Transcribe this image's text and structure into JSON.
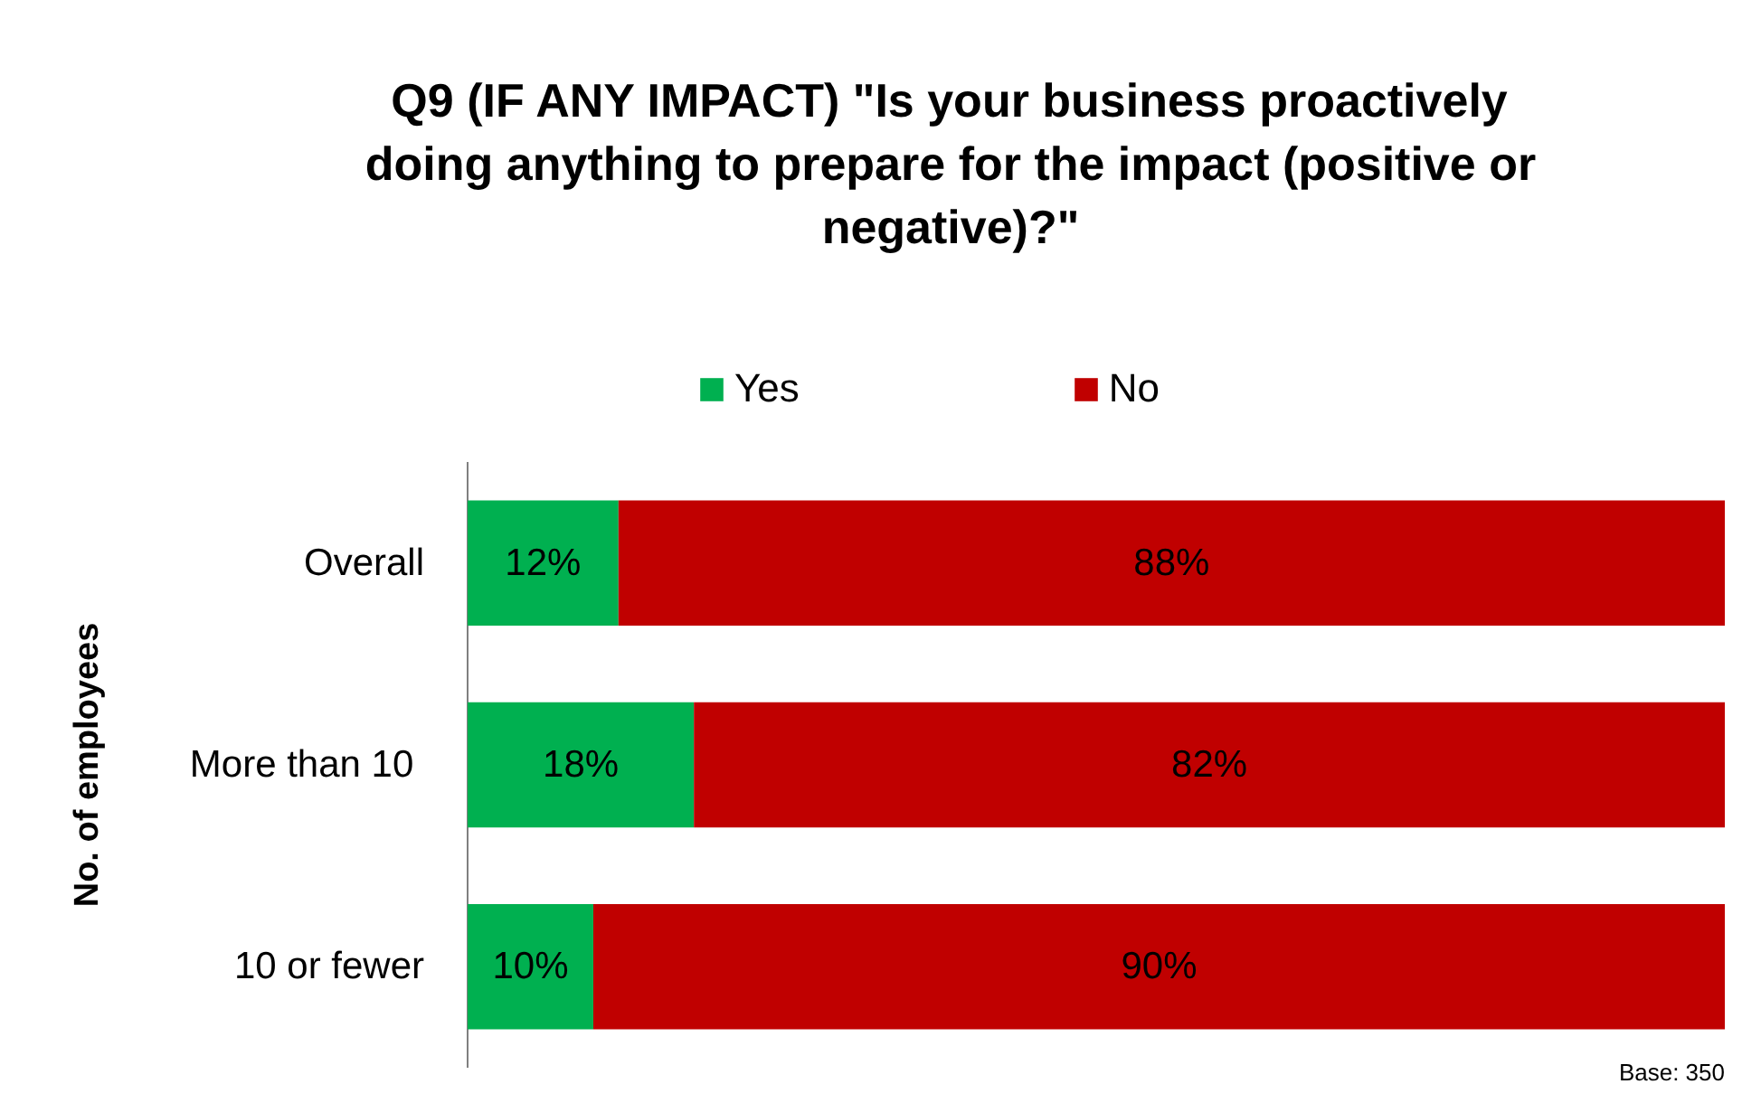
{
  "chart_data": {
    "type": "bar",
    "orientation": "horizontal",
    "stacked": true,
    "title": "Q9 (IF ANY IMPACT) \"Is your business proactively doing anything to prepare for the impact (positive or negative)?\"",
    "ylabel": "No. of employees",
    "categories": [
      "Overall",
      "More than  10",
      "10 or fewer"
    ],
    "series": [
      {
        "name": "Yes",
        "color": "#00b050",
        "values": [
          12,
          18,
          10
        ],
        "value_labels": [
          "12%",
          "18%",
          "10%"
        ]
      },
      {
        "name": "No",
        "color": "#c00000",
        "values": [
          88,
          82,
          90
        ],
        "value_labels": [
          "88%",
          "82%",
          "90%"
        ]
      }
    ],
    "legend": "top",
    "tick_labels": "y",
    "annotations": [
      "Base: 350"
    ]
  }
}
